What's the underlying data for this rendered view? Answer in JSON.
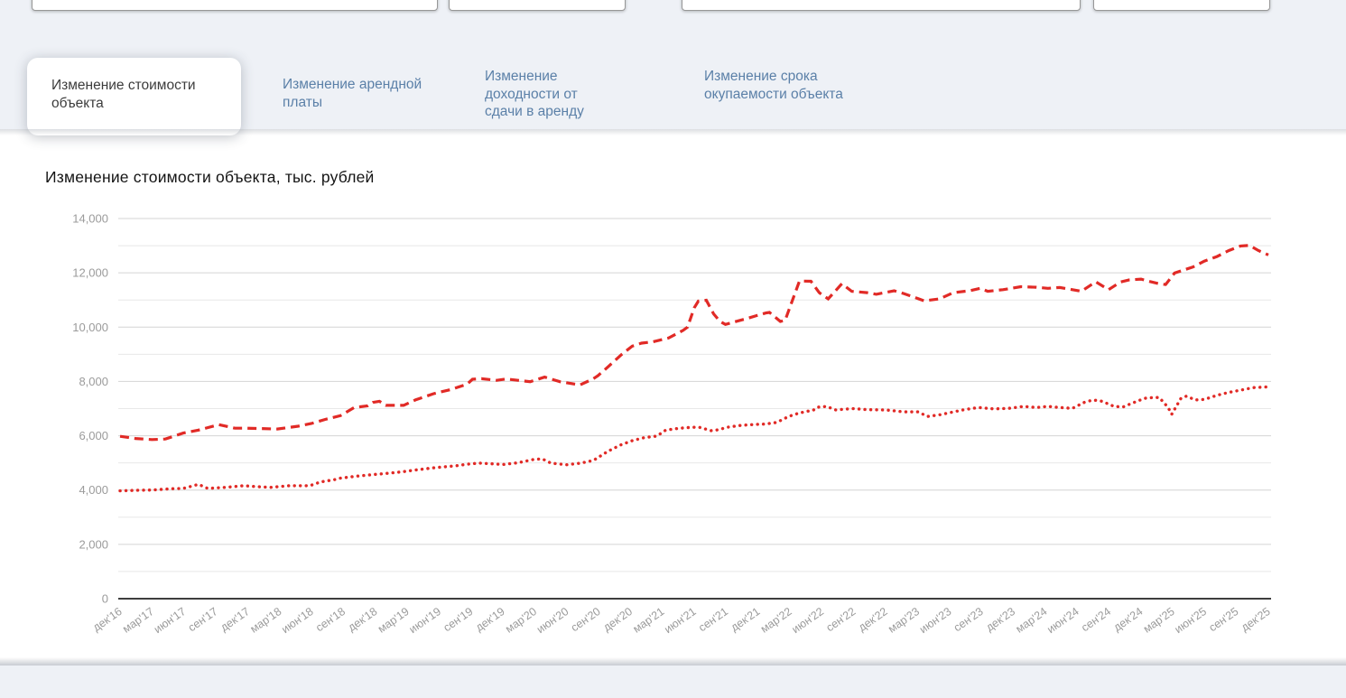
{
  "topbar": {
    "inputs": [
      {
        "value": ""
      },
      {
        "value": ""
      },
      {
        "value": ""
      },
      {
        "value": ""
      }
    ]
  },
  "tabs": [
    {
      "label": "Изменение стоимости объекта",
      "active": true
    },
    {
      "label": "Изменение арендной платы",
      "active": false
    },
    {
      "label": "Изменение доходности от сдачи в аренду",
      "active": false
    },
    {
      "label": "Изменение срока окупаемости объекта",
      "active": false
    }
  ],
  "colors": {
    "band_bg": "#eef1f6",
    "tab_inactive_text": "#5b80a8",
    "tab_active_text": "#3c3c3c",
    "series_red": "#e12a26",
    "grid_major": "#d4d4d4",
    "grid_minor": "#e8e8e8",
    "axis_line": "#3d3d3d",
    "tick_text": "#9b9b9b"
  },
  "chart_data": {
    "type": "line",
    "title": "Изменение стоимости объекта, тыс. рублей",
    "xlabel": "",
    "ylabel": "тыс. рублей",
    "ylim": [
      0,
      14000
    ],
    "y_label_step": 2000,
    "y_grid_step": 1000,
    "grid": "horizontal-only",
    "legend": "none",
    "y_tick_labels": [
      "0",
      "2,000",
      "4,000",
      "6,000",
      "8,000",
      "10,000",
      "12,000",
      "14,000"
    ],
    "x_tick_labels": [
      "дек'16",
      "мар'17",
      "июн'17",
      "сен'17",
      "дек'17",
      "мар'18",
      "июн'18",
      "сен'18",
      "дек'18",
      "мар'19",
      "июн'19",
      "сен'19",
      "дек'19",
      "мар'20",
      "июн'20",
      "сен'20",
      "дек'20",
      "мар'21",
      "июн'21",
      "сен'21",
      "дек'21",
      "мар'22",
      "июн'22",
      "сен'22",
      "дек'22",
      "мар'23",
      "июн'23",
      "сен'23",
      "дек'23",
      "мар'24",
      "июн'24",
      "сен'24",
      "дек'24",
      "мар'25",
      "июн'25",
      "сен'25",
      "дек'25"
    ],
    "series": [
      {
        "id": "property-value-dashed",
        "style": "dashed",
        "color": "#e12a26",
        "points": [
          [
            0,
            5980
          ],
          [
            0.48,
            5900
          ],
          [
            1,
            5860
          ],
          [
            1.42,
            5880
          ],
          [
            1.98,
            6100
          ],
          [
            2.46,
            6210
          ],
          [
            2.95,
            6360
          ],
          [
            3.09,
            6410
          ],
          [
            3.6,
            6280
          ],
          [
            3.97,
            6280
          ],
          [
            4.93,
            6250
          ],
          [
            5.58,
            6350
          ],
          [
            6,
            6450
          ],
          [
            6.43,
            6600
          ],
          [
            6.91,
            6740
          ],
          [
            7.34,
            7040
          ],
          [
            7.76,
            7100
          ],
          [
            7.93,
            7230
          ],
          [
            8.13,
            7270
          ],
          [
            8.33,
            7120
          ],
          [
            8.89,
            7120
          ],
          [
            9.26,
            7320
          ],
          [
            9.83,
            7550
          ],
          [
            10.4,
            7710
          ],
          [
            10.88,
            7900
          ],
          [
            11.05,
            8080
          ],
          [
            11.33,
            8100
          ],
          [
            11.81,
            8040
          ],
          [
            12.1,
            8090
          ],
          [
            12.86,
            7990
          ],
          [
            13.31,
            8160
          ],
          [
            13.79,
            7990
          ],
          [
            14.42,
            7870
          ],
          [
            14.84,
            8100
          ],
          [
            14.98,
            8210
          ],
          [
            15.3,
            8540
          ],
          [
            15.72,
            8990
          ],
          [
            16.06,
            9300
          ],
          [
            16.35,
            9410
          ],
          [
            16.71,
            9460
          ],
          [
            17.2,
            9600
          ],
          [
            17.65,
            9880
          ],
          [
            17.79,
            10000
          ],
          [
            18,
            10710
          ],
          [
            18.13,
            10960
          ],
          [
            18.38,
            10990
          ],
          [
            18.61,
            10490
          ],
          [
            18.81,
            10210
          ],
          [
            18.98,
            10100
          ],
          [
            19.37,
            10230
          ],
          [
            19.66,
            10320
          ],
          [
            19.97,
            10430
          ],
          [
            20.25,
            10520
          ],
          [
            20.36,
            10540
          ],
          [
            20.7,
            10210
          ],
          [
            20.85,
            10250
          ],
          [
            21.3,
            11700
          ],
          [
            21.66,
            11690
          ],
          [
            21.92,
            11270
          ],
          [
            22.2,
            11040
          ],
          [
            22.63,
            11600
          ],
          [
            22.94,
            11320
          ],
          [
            23.42,
            11270
          ],
          [
            23.71,
            11210
          ],
          [
            24.27,
            11340
          ],
          [
            24.56,
            11240
          ],
          [
            25.21,
            10970
          ],
          [
            25.69,
            11040
          ],
          [
            26.12,
            11270
          ],
          [
            26.63,
            11340
          ],
          [
            26.97,
            11430
          ],
          [
            27.2,
            11320
          ],
          [
            27.68,
            11380
          ],
          [
            28.24,
            11490
          ],
          [
            28.72,
            11470
          ],
          [
            29.09,
            11430
          ],
          [
            29.46,
            11460
          ],
          [
            29.86,
            11380
          ],
          [
            30.14,
            11320
          ],
          [
            30.59,
            11670
          ],
          [
            30.99,
            11380
          ],
          [
            31.36,
            11660
          ],
          [
            31.64,
            11740
          ],
          [
            32.01,
            11770
          ],
          [
            32.29,
            11680
          ],
          [
            32.58,
            11600
          ],
          [
            32.78,
            11570
          ],
          [
            33.06,
            11990
          ],
          [
            33.34,
            12100
          ],
          [
            33.63,
            12210
          ],
          [
            33.99,
            12430
          ],
          [
            34.39,
            12600
          ],
          [
            34.76,
            12820
          ],
          [
            35.13,
            12990
          ],
          [
            35.41,
            13010
          ],
          [
            35.69,
            12820
          ],
          [
            36,
            12660
          ]
        ]
      },
      {
        "id": "lower-dotted",
        "style": "dotted",
        "color": "#e12a26",
        "points": [
          [
            0,
            3970
          ],
          [
            0.48,
            3990
          ],
          [
            1,
            4000
          ],
          [
            1.61,
            4050
          ],
          [
            1.98,
            4060
          ],
          [
            2.46,
            4210
          ],
          [
            2.75,
            4060
          ],
          [
            3.31,
            4100
          ],
          [
            3.88,
            4160
          ],
          [
            4.36,
            4120
          ],
          [
            4.73,
            4100
          ],
          [
            5.3,
            4160
          ],
          [
            5.95,
            4160
          ],
          [
            6.29,
            4300
          ],
          [
            6.71,
            4380
          ],
          [
            6.91,
            4440
          ],
          [
            7.48,
            4520
          ],
          [
            7.93,
            4570
          ],
          [
            8.5,
            4630
          ],
          [
            8.89,
            4680
          ],
          [
            9.26,
            4740
          ],
          [
            9.83,
            4820
          ],
          [
            10.59,
            4900
          ],
          [
            10.88,
            4950
          ],
          [
            11.25,
            4990
          ],
          [
            11.61,
            4970
          ],
          [
            12.01,
            4940
          ],
          [
            12.46,
            5000
          ],
          [
            12.94,
            5120
          ],
          [
            13.23,
            5150
          ],
          [
            13.51,
            4990
          ],
          [
            14,
            4930
          ],
          [
            14.44,
            4990
          ],
          [
            14.84,
            5090
          ],
          [
            15.3,
            5430
          ],
          [
            15.69,
            5660
          ],
          [
            16.06,
            5820
          ],
          [
            16.43,
            5930
          ],
          [
            16.83,
            5990
          ],
          [
            17.11,
            6210
          ],
          [
            17.48,
            6270
          ],
          [
            17.76,
            6300
          ],
          [
            18.13,
            6320
          ],
          [
            18.53,
            6190
          ],
          [
            18.7,
            6210
          ],
          [
            19.08,
            6320
          ],
          [
            19.46,
            6380
          ],
          [
            19.83,
            6410
          ],
          [
            20.23,
            6430
          ],
          [
            20.59,
            6490
          ],
          [
            20.96,
            6710
          ],
          [
            21.25,
            6820
          ],
          [
            21.53,
            6900
          ],
          [
            21.72,
            6930
          ],
          [
            21.86,
            7050
          ],
          [
            22.15,
            7080
          ],
          [
            22.44,
            6950
          ],
          [
            22.72,
            6980
          ],
          [
            23,
            7000
          ],
          [
            23.43,
            6960
          ],
          [
            24.02,
            6950
          ],
          [
            24.56,
            6880
          ],
          [
            25.01,
            6880
          ],
          [
            25.32,
            6710
          ],
          [
            25.69,
            6770
          ],
          [
            26.46,
            6960
          ],
          [
            26.91,
            7040
          ],
          [
            27.39,
            6990
          ],
          [
            27.87,
            7010
          ],
          [
            28.33,
            7080
          ],
          [
            28.72,
            7040
          ],
          [
            29.09,
            7080
          ],
          [
            29.46,
            7040
          ],
          [
            29.86,
            7010
          ],
          [
            30.23,
            7230
          ],
          [
            30.51,
            7320
          ],
          [
            30.79,
            7270
          ],
          [
            31.16,
            7080
          ],
          [
            31.45,
            7060
          ],
          [
            31.56,
            7120
          ],
          [
            32.12,
            7380
          ],
          [
            32.4,
            7410
          ],
          [
            32.58,
            7410
          ],
          [
            32.86,
            7040
          ],
          [
            32.97,
            6790
          ],
          [
            33.26,
            7380
          ],
          [
            33.43,
            7460
          ],
          [
            33.71,
            7320
          ],
          [
            34,
            7340
          ],
          [
            34.39,
            7490
          ],
          [
            34.76,
            7600
          ],
          [
            35.13,
            7680
          ],
          [
            35.52,
            7770
          ],
          [
            35.84,
            7790
          ],
          [
            36,
            7800
          ]
        ]
      }
    ]
  }
}
